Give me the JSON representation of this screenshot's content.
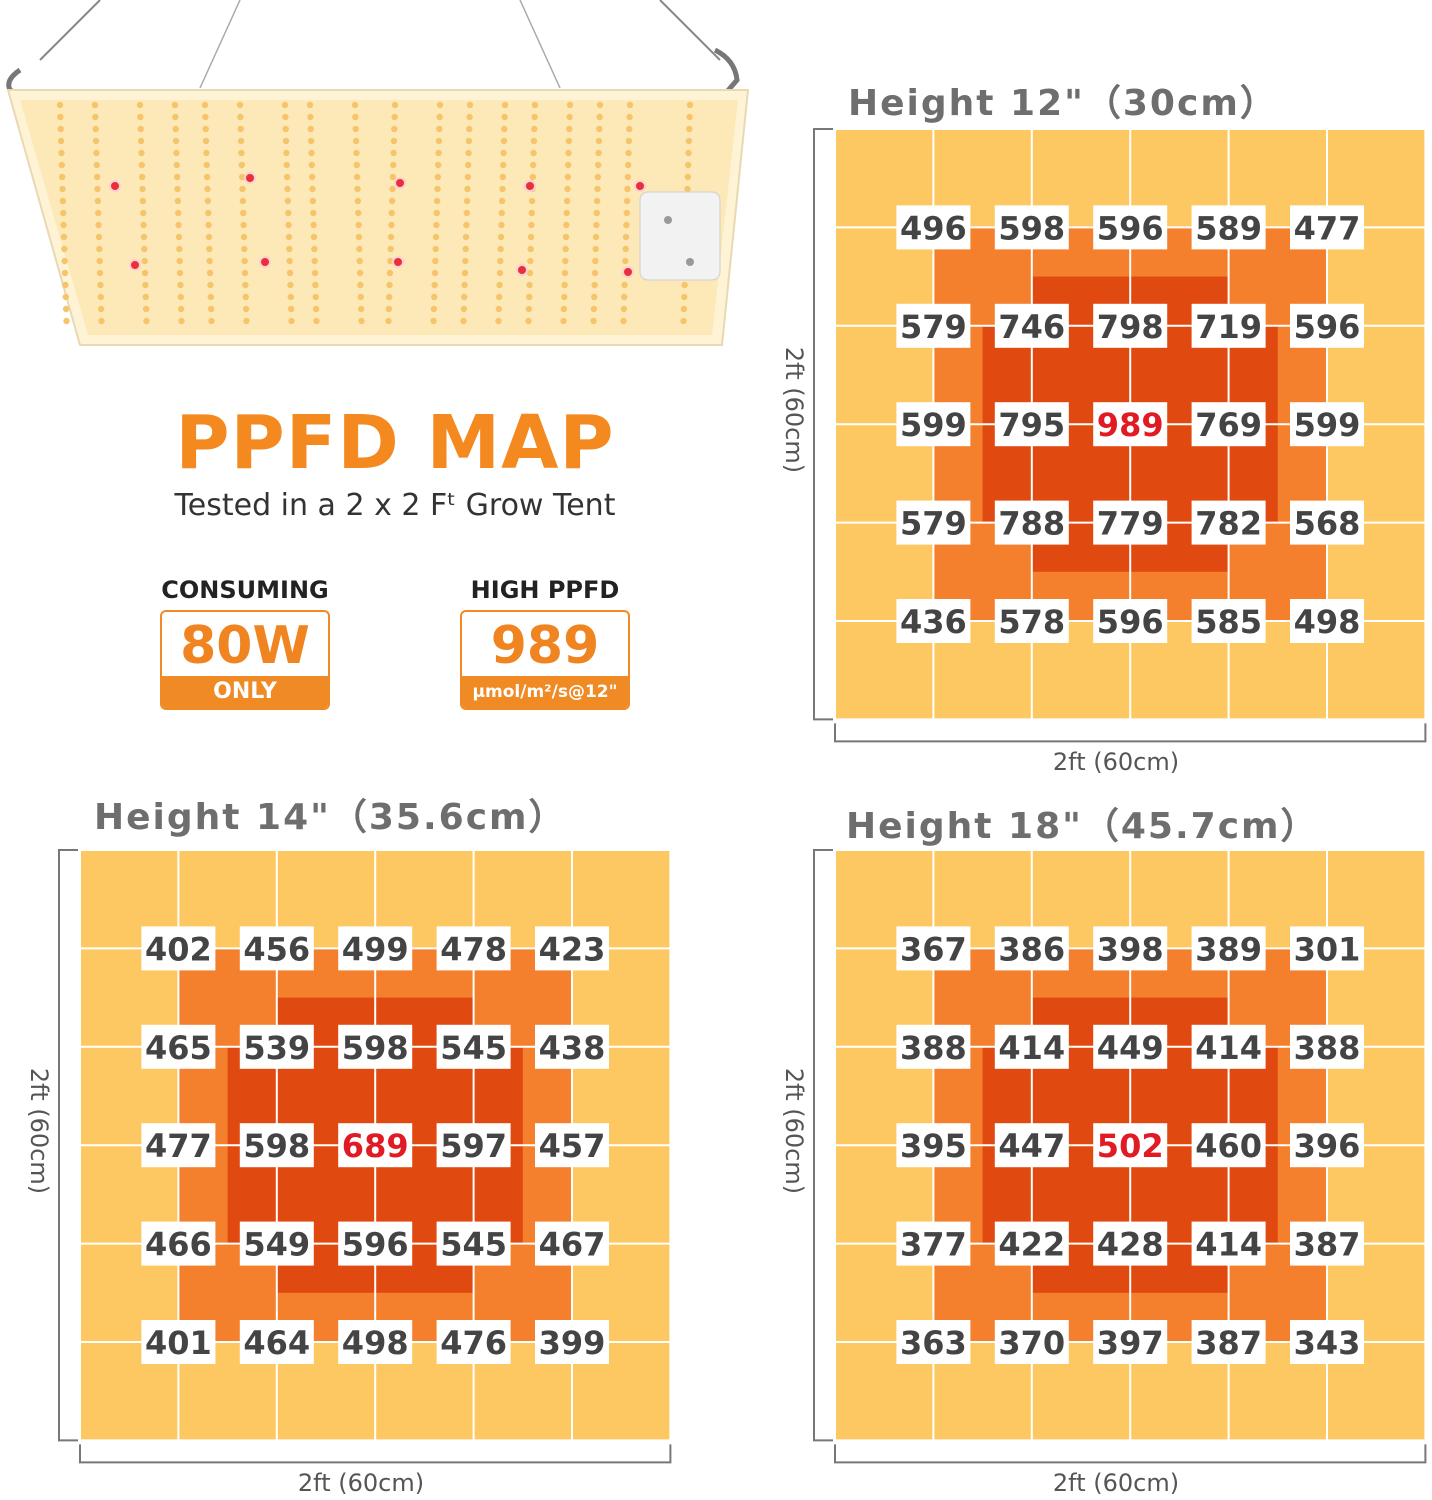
{
  "header": {
    "title": "PPFD MAP",
    "subtitle": "Tested in a 2 x 2 Fᵗ Grow Tent"
  },
  "badges": {
    "consuming": {
      "label": "CONSUMING",
      "value": "80W",
      "note": "ONLY"
    },
    "high_ppfd": {
      "label": "HIGH PPFD",
      "value": "989",
      "note": "μmol/m²/s@12\""
    }
  },
  "colors": {
    "outer": "#fdc862",
    "ring": "#f47f2c",
    "core": "#e04a10",
    "grid_line": "#ffffff",
    "value_text": "#444444",
    "peak_text": "#e01b24",
    "brand_orange": "#f08a24"
  },
  "dimension_label": "2ft (60cm)",
  "chart_data": [
    {
      "type": "heatmap",
      "title": "Height 12\"（30cm）",
      "xlabel": "2ft (60cm)",
      "ylabel": "2ft (60cm)",
      "values": [
        [
          "496",
          "598",
          "596",
          "589",
          "477"
        ],
        [
          "579",
          "746",
          "798",
          "719",
          "596"
        ],
        [
          "599",
          "795",
          "989",
          "769",
          "599"
        ],
        [
          "579",
          "788",
          "779",
          "782",
          "568"
        ],
        [
          "436",
          "578",
          "596",
          "585",
          "498"
        ]
      ],
      "peak": "989"
    },
    {
      "type": "heatmap",
      "title": "Height 14\"（35.6cm）",
      "xlabel": "2ft (60cm)",
      "ylabel": "2ft (60cm)",
      "values": [
        [
          "402",
          "456",
          "499",
          "478",
          "423"
        ],
        [
          "465",
          "539",
          "598",
          "545",
          "438"
        ],
        [
          "477",
          "598",
          "689",
          "597",
          "457"
        ],
        [
          "466",
          "549",
          "596",
          "545",
          "467"
        ],
        [
          "401",
          "464",
          "498",
          "476",
          "399"
        ]
      ],
      "peak": "689"
    },
    {
      "type": "heatmap",
      "title": "Height 18\"（45.7cm）",
      "xlabel": "2ft (60cm)",
      "ylabel": "2ft (60cm)",
      "values": [
        [
          "367",
          "386",
          "398",
          "389",
          "301"
        ],
        [
          "388",
          "414",
          "449",
          "414",
          "388"
        ],
        [
          "395",
          "447",
          "502",
          "460",
          "396"
        ],
        [
          "377",
          "422",
          "428",
          "414",
          "387"
        ],
        [
          "363",
          "370",
          "397",
          "387",
          "343"
        ]
      ],
      "peak": "502"
    }
  ]
}
